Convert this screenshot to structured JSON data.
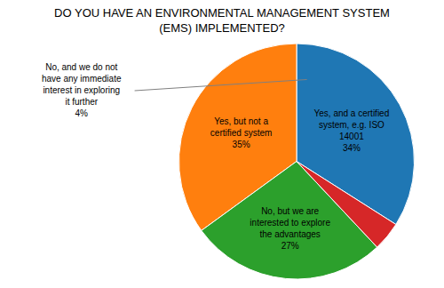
{
  "chart_data": {
    "type": "pie",
    "title": "DO YOU HAVE AN ENVIRONMENTAL MANAGEMENT SYSTEM\n(EMS) IMPLEMENTED?",
    "categories": [
      "Yes, and a certified\nsystem, e.g. ISO\n14001",
      "Yes, but not a\ncertified system",
      "No, but we are\ninterested to explore\nthe advantages",
      "No, and we do not\nhave any immediate\ninterest in exploring\nit further"
    ],
    "values": [
      34,
      35,
      27,
      4
    ],
    "value_labels": [
      "34%",
      "35%",
      "27%",
      "4%"
    ]
  }
}
